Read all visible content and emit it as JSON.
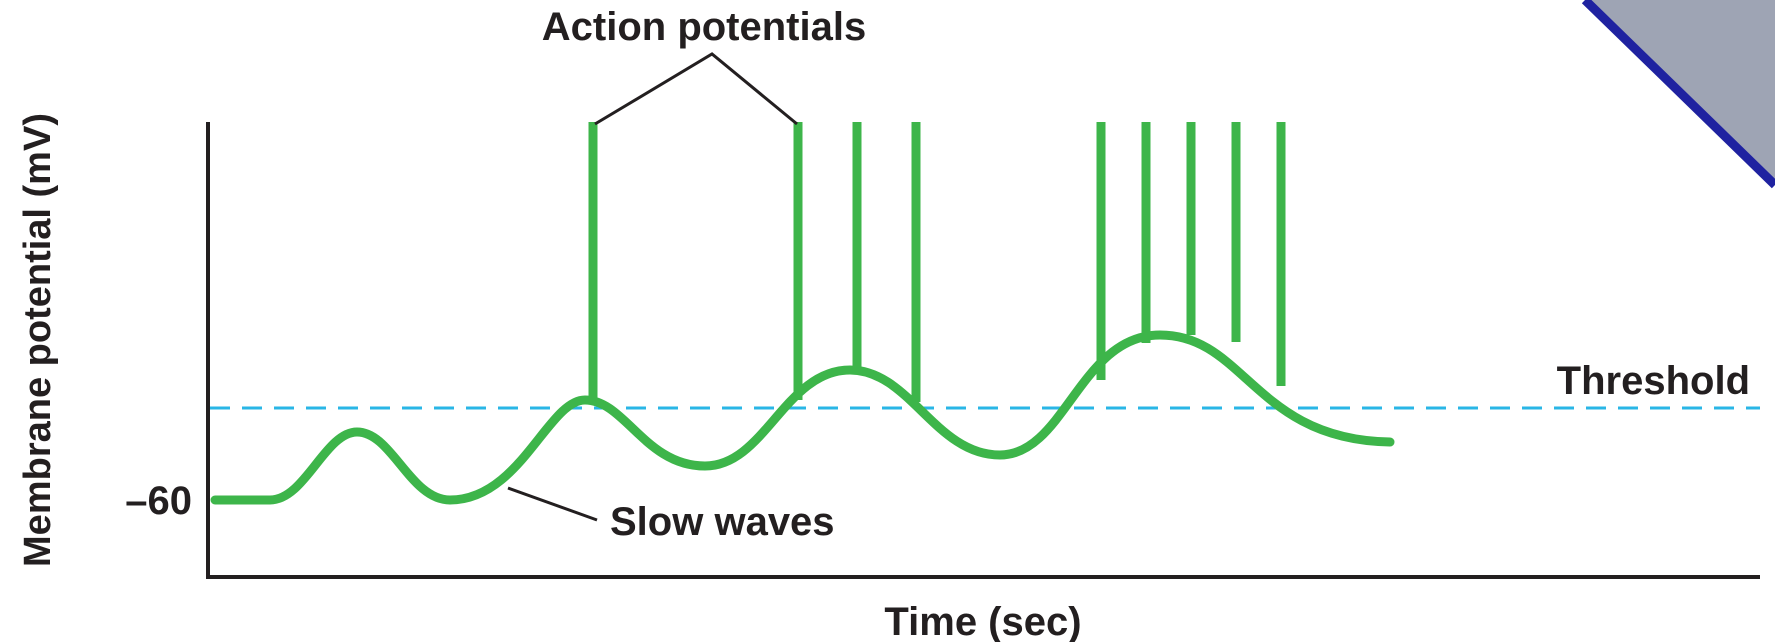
{
  "diagram": {
    "ylabel": "Membrane potential (mV)",
    "xlabel": "Time (sec)",
    "y_tick": "–60",
    "threshold_label": "Threshold",
    "action_potentials_label": "Action potentials",
    "slow_waves_label": "Slow waves"
  },
  "colors": {
    "trace": "#3db54a",
    "threshold": "#29b6e6",
    "axis": "#231f20",
    "corner_fill": "#9ea4b4",
    "corner_edge": "#1f22a0"
  }
}
